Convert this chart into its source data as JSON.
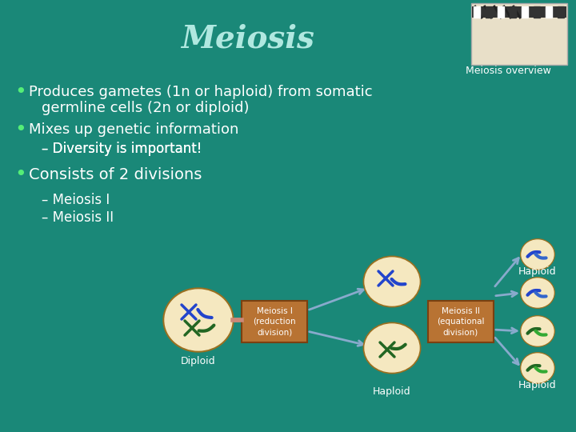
{
  "title": "Meiosis",
  "subtitle": "Meiosis overview",
  "bg_color": "#1a8878",
  "title_color": "#b0e8e0",
  "text_color": "#ffffff",
  "bullet_color": "#55ee77",
  "box_color": "#b87333",
  "cell_fill": "#f5e8c0",
  "cell_border": "#9b7020",
  "arrow_color": "#88aacc",
  "salmon_color": "#dd9988",
  "box1_text": "Meiosis I\n(reduction\ndivision)",
  "box2_text": "Meiosis II\n(equational\ndivision)",
  "label_diploid": "Diploid",
  "label_haploid1": "Haploid",
  "label_haploid2": "Haploid",
  "blue_chrom": "#2244cc",
  "green_chrom": "#226622"
}
